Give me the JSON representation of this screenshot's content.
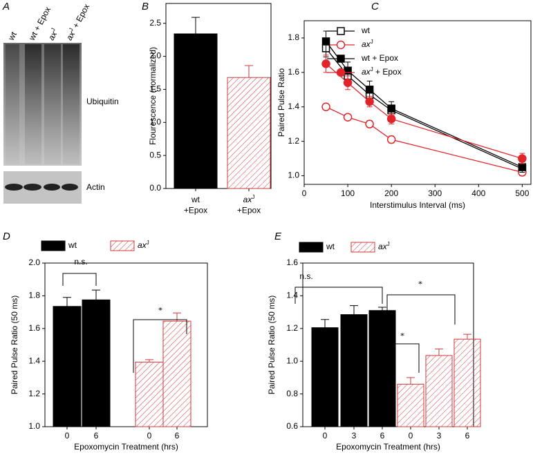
{
  "blot": {
    "panel_label": "A",
    "lanes": [
      [
        {
          "text": "wt"
        }
      ],
      [
        {
          "text": "wt + Epox"
        }
      ],
      [
        {
          "text": "ax",
          "italic": true
        },
        {
          "text": "J",
          "sup": true
        }
      ],
      [
        {
          "text": "ax",
          "italic": true
        },
        {
          "text": "J",
          "sup": true
        },
        {
          "text": " + Epox"
        }
      ]
    ],
    "bands": [
      "Ubiquitin",
      "Actin"
    ]
  },
  "chart_data": [
    {
      "type": "bar",
      "panel_label": "B",
      "ylabel": "Flourescence (normalized)",
      "categories": [
        [
          {
            "text": "wt"
          },
          {
            "text": "+Epox",
            "newline": true
          }
        ],
        [
          {
            "text": "ax",
            "italic": true
          },
          {
            "text": "J",
            "sup": true
          },
          {
            "text": "+Epox",
            "newline": true
          }
        ]
      ],
      "values": [
        2.34,
        1.68
      ],
      "errors": [
        0.25,
        0.18
      ],
      "colors": [
        "#000000",
        "#d0373b"
      ],
      "hatch": [
        false,
        true
      ],
      "ylim": [
        0,
        2.8
      ],
      "yticks": [
        {
          "value": 0,
          "label": "0.0"
        },
        {
          "value": 0.5,
          "label": "0.5"
        },
        {
          "value": 1,
          "label": "1.0"
        },
        {
          "value": 1.5,
          "label": "1.5"
        },
        {
          "value": 2,
          "label": "2.0"
        },
        {
          "value": 2.5,
          "label": "2.5"
        }
      ]
    },
    {
      "type": "line",
      "panel_label": "C",
      "xlabel": "Interstimulus Interval (ms)",
      "ylabel": "Paired Pulse Ratio",
      "x": [
        50,
        100,
        150,
        200,
        500
      ],
      "series": [
        {
          "name": [
            {
              "text": "wt"
            }
          ],
          "color": "#000000",
          "marker": "square",
          "filled": false,
          "values": [
            1.74,
            1.58,
            1.47,
            1.38,
            1.04
          ],
          "errors": [
            0.05,
            0.04,
            0.04,
            0.03,
            0.03
          ]
        },
        {
          "name": [
            {
              "text": "ax",
              "italic": true
            },
            {
              "text": "J",
              "sup": true
            }
          ],
          "color": "#e0242a",
          "marker": "circle",
          "filled": false,
          "values": [
            1.4,
            1.34,
            1.3,
            1.21,
            1.02
          ],
          "errors": [
            0.01,
            0.01,
            0.02,
            0.02,
            0.02
          ]
        },
        {
          "name": [
            {
              "text": "wt + Epox"
            }
          ],
          "color": "#000000",
          "marker": "square",
          "filled": true,
          "values": [
            1.78,
            1.61,
            1.5,
            1.39,
            1.05
          ],
          "errors": [
            0.06,
            0.05,
            0.05,
            0.04,
            0.03
          ]
        },
        {
          "name": [
            {
              "text": "ax",
              "italic": true
            },
            {
              "text": "J",
              "sup": true
            },
            {
              "text": " + Epox"
            }
          ],
          "color": "#e0242a",
          "marker": "circle",
          "filled": true,
          "values": [
            1.65,
            1.54,
            1.43,
            1.33,
            1.1
          ],
          "errors": [
            0.05,
            0.04,
            0.03,
            0.03,
            0.03
          ]
        }
      ],
      "xlim": [
        0,
        520
      ],
      "xticks": [
        0,
        100,
        200,
        300,
        400,
        500
      ],
      "ylim": [
        0.95,
        1.9
      ],
      "yticks": [
        {
          "value": 1,
          "label": "1.0"
        },
        {
          "value": 1.2,
          "label": "1.2"
        },
        {
          "value": 1.4,
          "label": "1.4"
        },
        {
          "value": 1.6,
          "label": "1.6"
        },
        {
          "value": 1.8,
          "label": "1.8"
        }
      ],
      "legend": "upper-left"
    },
    {
      "type": "bar",
      "panel_label": "D",
      "xlabel": "Epoxomycin Treatment (hrs)",
      "ylabel": "Paired Pulse Ratio (50 ms)",
      "categories": [
        "0",
        "6",
        "0",
        "6"
      ],
      "series": [
        {
          "name": [
            {
              "text": "wt"
            }
          ],
          "color": "#000000",
          "hatch": false,
          "values": [
            1.735,
            1.775,
            null,
            null
          ],
          "errors": [
            0.055,
            0.06,
            null,
            null
          ]
        },
        {
          "name": [
            {
              "text": "ax",
              "italic": true
            },
            {
              "text": "J",
              "sup": true
            }
          ],
          "color": "#d0373b",
          "hatch": true,
          "values": [
            null,
            null,
            1.395,
            1.645
          ],
          "errors": [
            null,
            null,
            0.015,
            0.05
          ]
        }
      ],
      "annotations": [
        {
          "text": "n.s."
        },
        {
          "text": "⁎"
        }
      ],
      "ylim": [
        1,
        2
      ],
      "yticks": [
        {
          "value": 1,
          "label": "1.0"
        },
        {
          "value": 1.2,
          "label": "1.2"
        },
        {
          "value": 1.4,
          "label": "1.4"
        },
        {
          "value": 1.6,
          "label": "1.6"
        },
        {
          "value": 1.8,
          "label": "1.8"
        },
        {
          "value": 2,
          "label": "2.0"
        }
      ]
    },
    {
      "type": "bar",
      "panel_label": "E",
      "xlabel": "Epoxomycin Treatment (hrs)",
      "ylabel": "Paired Pulse Ratio (50 ms)",
      "categories": [
        "0",
        "3",
        "6",
        "0",
        "3",
        "6"
      ],
      "series": [
        {
          "name": [
            {
              "text": "wt"
            }
          ],
          "color": "#000000",
          "hatch": false,
          "values": [
            1.205,
            1.285,
            1.31,
            null,
            null,
            null
          ],
          "errors": [
            0.05,
            0.055,
            0.02,
            null,
            null,
            null
          ]
        },
        {
          "name": [
            {
              "text": "ax",
              "italic": true
            },
            {
              "text": "J",
              "sup": true
            }
          ],
          "color": "#d0373b",
          "hatch": true,
          "values": [
            null,
            null,
            null,
            0.86,
            1.035,
            1.135
          ],
          "errors": [
            null,
            null,
            null,
            0.04,
            0.04,
            0.03
          ]
        }
      ],
      "annotations": [
        {
          "text": "n.s."
        },
        {
          "text": "⁎"
        },
        {
          "text": "⁎"
        }
      ],
      "ylim": [
        0.6,
        1.6
      ],
      "yticks": [
        {
          "value": 0.6,
          "label": "0.6"
        },
        {
          "value": 0.8,
          "label": "0.8"
        },
        {
          "value": 1,
          "label": "1.0"
        },
        {
          "value": 1.2,
          "label": "1.2"
        },
        {
          "value": 1.4,
          "label": "1.4"
        },
        {
          "value": 1.6,
          "label": "1.6"
        }
      ]
    }
  ]
}
